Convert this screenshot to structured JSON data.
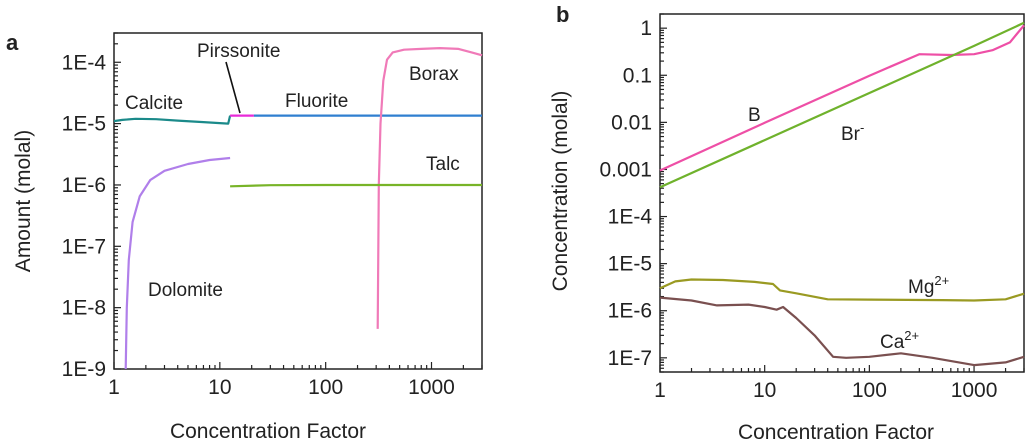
{
  "panels": [
    {
      "letter": "a"
    },
    {
      "letter": "b"
    }
  ],
  "chart_data": [
    {
      "type": "line",
      "xlabel": "Concentration Factor",
      "ylabel": "Amount (molal)",
      "xscale": "log",
      "yscale": "log",
      "xlim": [
        1,
        3000
      ],
      "ylim": [
        1e-09,
        0.0003
      ],
      "xticks": [
        {
          "value": 1,
          "label": "1"
        },
        {
          "value": 10,
          "label": "10"
        },
        {
          "value": 100,
          "label": "100"
        },
        {
          "value": 1000,
          "label": "1000"
        }
      ],
      "yticks": [
        {
          "value": 1e-09,
          "label": "1E-9"
        },
        {
          "value": 1e-08,
          "label": "1E-8"
        },
        {
          "value": 1e-07,
          "label": "1E-7"
        },
        {
          "value": 1e-06,
          "label": "1E-6"
        },
        {
          "value": 1e-05,
          "label": "1E-5"
        },
        {
          "value": 0.0001,
          "label": "1E-4"
        }
      ],
      "series": [
        {
          "name": "Calcite",
          "color": "#1b8a8a",
          "points": [
            [
              1,
              1.1e-05
            ],
            [
              1.2,
              1.15e-05
            ],
            [
              1.6,
              1.2e-05
            ],
            [
              2.5,
              1.18e-05
            ],
            [
              4,
              1.12e-05
            ],
            [
              7,
              1.06e-05
            ],
            [
              10,
              1.02e-05
            ],
            [
              12,
              1e-05
            ],
            [
              12.5,
              1.35e-05
            ]
          ]
        },
        {
          "name": "Pirssonite",
          "color": "#e82ad8",
          "points": [
            [
              12.5,
              1.35e-05
            ],
            [
              21,
              1.35e-05
            ]
          ]
        },
        {
          "name": "Fluorite",
          "color": "#2f7fd0",
          "points": [
            [
              21,
              1.35e-05
            ],
            [
              3000,
              1.35e-05
            ]
          ]
        },
        {
          "name": "Borax",
          "color": "#f07ab8",
          "points": [
            [
              310,
              4.5e-09
            ],
            [
              318,
              1e-06
            ],
            [
              330,
              1e-05
            ],
            [
              350,
              5e-05
            ],
            [
              380,
              0.00011
            ],
            [
              430,
              0.000145
            ],
            [
              550,
              0.00016
            ],
            [
              800,
              0.000165
            ],
            [
              1200,
              0.00017
            ],
            [
              1800,
              0.000165
            ],
            [
              2400,
              0.000145
            ],
            [
              3000,
              0.00013
            ]
          ]
        },
        {
          "name": "Talc",
          "color": "#78b428",
          "points": [
            [
              12.5,
              9.5e-07
            ],
            [
              30,
              9.9e-07
            ],
            [
              100,
              1e-06
            ],
            [
              1000,
              1e-06
            ],
            [
              3000,
              1e-06
            ]
          ]
        },
        {
          "name": "Dolomite",
          "color": "#b07fea",
          "points": [
            [
              1.29,
              1e-09
            ],
            [
              1.32,
              1e-08
            ],
            [
              1.38,
              6e-08
            ],
            [
              1.5,
              2.5e-07
            ],
            [
              1.75,
              6.5e-07
            ],
            [
              2.2,
              1.2e-06
            ],
            [
              3,
              1.7e-06
            ],
            [
              5,
              2.2e-06
            ],
            [
              8,
              2.55e-06
            ],
            [
              12.5,
              2.75e-06
            ]
          ]
        }
      ],
      "annotations": [
        {
          "text": "Calcite",
          "series": "Calcite"
        },
        {
          "text": "Pirssonite",
          "series": "Pirssonite"
        },
        {
          "text": "Fluorite",
          "series": "Fluorite"
        },
        {
          "text": "Borax",
          "series": "Borax"
        },
        {
          "text": "Talc",
          "series": "Talc"
        },
        {
          "text": "Dolomite",
          "series": "Dolomite"
        }
      ],
      "grid": false,
      "legend": "none"
    },
    {
      "type": "line",
      "xlabel": "Concentration Factor",
      "ylabel": "Concentration (molal)",
      "xscale": "log",
      "yscale": "log",
      "xlim": [
        1,
        3000
      ],
      "ylim": [
        5e-08,
        2
      ],
      "xticks": [
        {
          "value": 1,
          "label": "1"
        },
        {
          "value": 10,
          "label": "10"
        },
        {
          "value": 100,
          "label": "100"
        },
        {
          "value": 1000,
          "label": "1000"
        }
      ],
      "yticks": [
        {
          "value": 1e-07,
          "label": "1E-7"
        },
        {
          "value": 1e-06,
          "label": "1E-6"
        },
        {
          "value": 1e-05,
          "label": "1E-5"
        },
        {
          "value": 0.0001,
          "label": "1E-4"
        },
        {
          "value": 0.001,
          "label": "0.001"
        },
        {
          "value": 0.01,
          "label": "0.01"
        },
        {
          "value": 0.1,
          "label": "0.1"
        },
        {
          "value": 1,
          "label": "1"
        }
      ],
      "series": [
        {
          "name": "B",
          "color": "#ee4fa6",
          "points": [
            [
              1,
              0.00095
            ],
            [
              10,
              0.0098
            ],
            [
              100,
              0.098
            ],
            [
              300,
              0.28
            ],
            [
              600,
              0.27
            ],
            [
              1000,
              0.28
            ],
            [
              1500,
              0.34
            ],
            [
              2200,
              0.5
            ],
            [
              3000,
              1.15
            ]
          ]
        },
        {
          "name": "Br⁻",
          "color": "#6fb22c",
          "points": [
            [
              1,
              0.00042
            ],
            [
              10,
              0.0042
            ],
            [
              100,
              0.042
            ],
            [
              1000,
              0.42
            ],
            [
              3000,
              1.3
            ]
          ]
        },
        {
          "name": "Mg²⁺",
          "color": "#9a9a22",
          "points": [
            [
              1,
              3e-06
            ],
            [
              1.4,
              4.2e-06
            ],
            [
              2,
              4.6e-06
            ],
            [
              4,
              4.5e-06
            ],
            [
              8,
              4.1e-06
            ],
            [
              12,
              3.7e-06
            ],
            [
              14,
              2.7e-06
            ],
            [
              20,
              2.35e-06
            ],
            [
              40,
              1.75e-06
            ],
            [
              100,
              1.72e-06
            ],
            [
              500,
              1.68e-06
            ],
            [
              1000,
              1.65e-06
            ],
            [
              2000,
              1.75e-06
            ],
            [
              3000,
              2.3e-06
            ]
          ]
        },
        {
          "name": "Ca²⁺",
          "color": "#7a5050",
          "points": [
            [
              1,
              1.9e-06
            ],
            [
              2,
              1.65e-06
            ],
            [
              3.5,
              1.3e-06
            ],
            [
              7,
              1.35e-06
            ],
            [
              10,
              1.2e-06
            ],
            [
              13,
              1.05e-06
            ],
            [
              15,
              1.2e-06
            ],
            [
              20,
              7e-07
            ],
            [
              30,
              3e-07
            ],
            [
              45,
              1.05e-07
            ],
            [
              60,
              1e-07
            ],
            [
              100,
              1.05e-07
            ],
            [
              200,
              1.25e-07
            ],
            [
              400,
              1e-07
            ],
            [
              1000,
              7e-08
            ],
            [
              2000,
              8e-08
            ],
            [
              3000,
              1.05e-07
            ]
          ]
        }
      ],
      "annotations": [
        {
          "text": "B",
          "series": "B"
        },
        {
          "text": "Br",
          "sup": "-",
          "series": "Br⁻"
        },
        {
          "text": "Mg",
          "sup": "2+",
          "series": "Mg²⁺"
        },
        {
          "text": "Ca",
          "sup": "2+",
          "series": "Ca²⁺"
        }
      ],
      "grid": false,
      "legend": "none"
    }
  ]
}
